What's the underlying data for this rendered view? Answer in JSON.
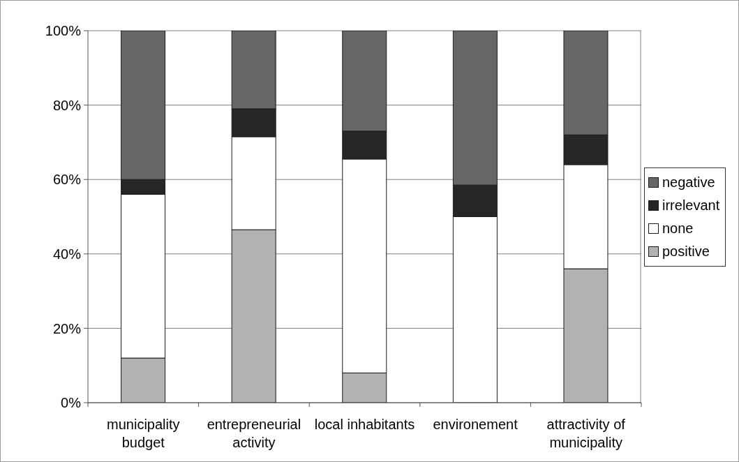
{
  "chart_data": {
    "type": "bar",
    "stacked": true,
    "categories": [
      "municipality budget",
      "entrepreneurial activity",
      "local inhabitants",
      "environement",
      "attractivity of municipality"
    ],
    "series": [
      {
        "name": "positive",
        "color": "#b2b2b2",
        "values": [
          12,
          46.5,
          8,
          0,
          36
        ]
      },
      {
        "name": "none",
        "color": "#ffffff",
        "values": [
          44,
          25,
          57.5,
          50,
          28
        ]
      },
      {
        "name": "irrelevant",
        "color": "#262626",
        "values": [
          4,
          7.5,
          7.5,
          8.5,
          8
        ]
      },
      {
        "name": "negative",
        "color": "#666666",
        "values": [
          40,
          21,
          27,
          41.5,
          28
        ]
      }
    ],
    "ylim": [
      0,
      100
    ],
    "yticks": [
      {
        "value": 0,
        "label": "0%"
      },
      {
        "value": 20,
        "label": "20%"
      },
      {
        "value": 40,
        "label": "40%"
      },
      {
        "value": 60,
        "label": "60%"
      },
      {
        "value": 80,
        "label": "80%"
      },
      {
        "value": 100,
        "label": "100%"
      }
    ],
    "grid": "y",
    "legend": "right"
  }
}
